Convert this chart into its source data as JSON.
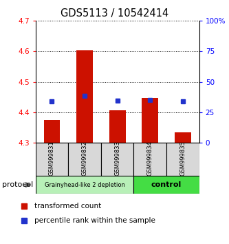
{
  "title": "GDS5113 / 10542414",
  "samples": [
    "GSM999831",
    "GSM999832",
    "GSM999833",
    "GSM999834",
    "GSM999835"
  ],
  "red_values": [
    4.375,
    4.603,
    4.407,
    4.447,
    4.335
  ],
  "blue_values": [
    4.435,
    4.455,
    4.437,
    4.44,
    4.435
  ],
  "y_min": 4.3,
  "y_max": 4.7,
  "y_ticks_left": [
    4.3,
    4.4,
    4.5,
    4.6,
    4.7
  ],
  "y_ticks_right": [
    0,
    25,
    50,
    75,
    100
  ],
  "y_ticks_right_labels": [
    "0",
    "25",
    "50",
    "75",
    "100%"
  ],
  "group1_indices": [
    0,
    1,
    2
  ],
  "group2_indices": [
    3,
    4
  ],
  "group1_label": "Grainyhead-like 2 depletion",
  "group2_label": "control",
  "group1_color": "#b8f0b8",
  "group2_color": "#44dd44",
  "protocol_label": "protocol",
  "legend_red_label": "transformed count",
  "legend_blue_label": "percentile rank within the sample",
  "bar_color": "#cc1100",
  "marker_color": "#2233cc",
  "bg_color": "#d8d8d8"
}
